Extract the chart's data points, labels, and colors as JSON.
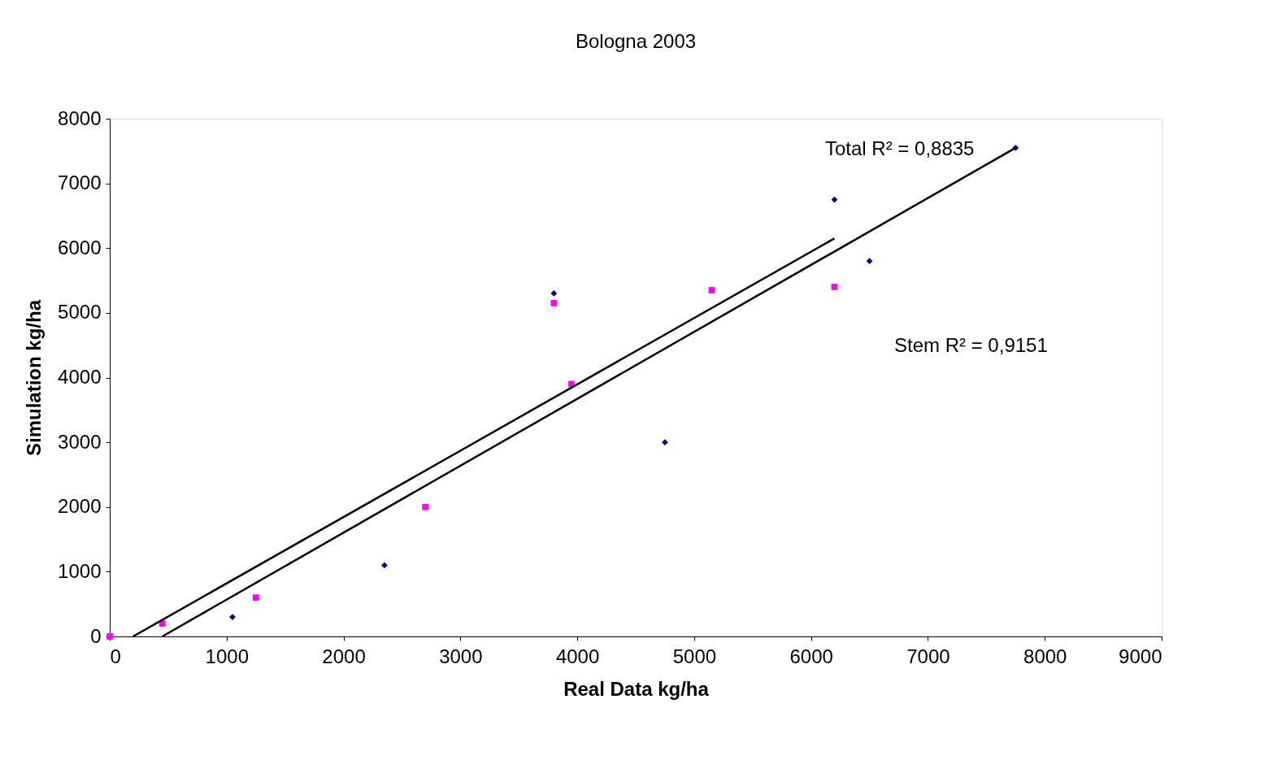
{
  "chart_data": {
    "type": "scatter",
    "title": "Bologna 2003",
    "xlabel": "Real Data kg/ha",
    "ylabel": "Simulation kg/ha",
    "xlim": [
      0,
      9000
    ],
    "xticks": [
      0,
      1000,
      2000,
      3000,
      4000,
      5000,
      6000,
      7000,
      8000,
      9000
    ],
    "ylim": [
      0,
      8000
    ],
    "yticks": [
      0,
      1000,
      2000,
      3000,
      4000,
      5000,
      6000,
      7000,
      8000
    ],
    "grid": false,
    "series": [
      {
        "type": "scatter",
        "marker": "diamond",
        "color": "#000080",
        "x": [
          1050,
          2350,
          3800,
          4750,
          6200,
          6500,
          7750
        ],
        "values": [
          300,
          1100,
          5300,
          3000,
          6750,
          5800,
          7550
        ]
      },
      {
        "type": "scatter",
        "marker": "square",
        "color": "#ff00ff",
        "x": [
          0,
          450,
          1250,
          2700,
          3800,
          3950,
          5150,
          6200
        ],
        "values": [
          0,
          200,
          600,
          2000,
          5150,
          3900,
          5350,
          5400
        ]
      },
      {
        "type": "line",
        "marker": "none",
        "color": "#000000",
        "x": [
          200,
          6200
        ],
        "values": [
          0,
          6150
        ]
      },
      {
        "type": "line",
        "marker": "none",
        "color": "#000000",
        "x": [
          450,
          7750
        ],
        "values": [
          0,
          7550
        ]
      }
    ],
    "annotations": [
      "Total R² = 0,8835",
      "Stem R² = 0,9151"
    ]
  }
}
